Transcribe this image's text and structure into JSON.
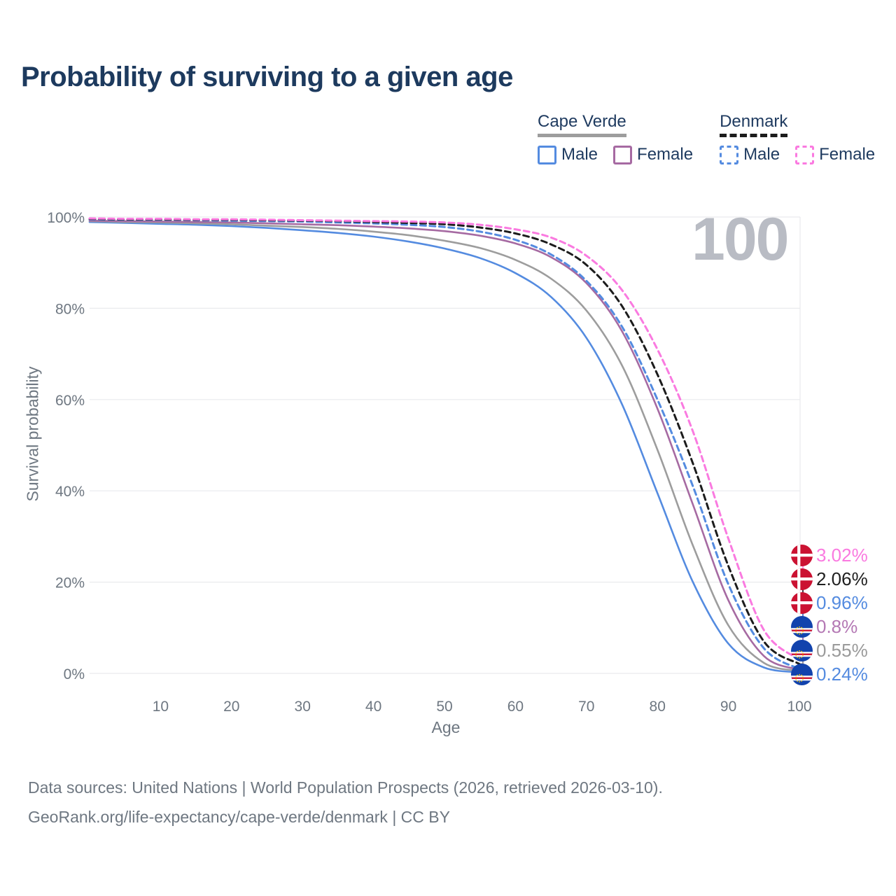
{
  "title": "Probability of surviving to a given age",
  "watermark": "100",
  "legend": {
    "groups": [
      {
        "label": "Cape Verde",
        "line_style": "solid",
        "line_color": "#9d9d9d",
        "items": [
          {
            "label": "Male",
            "color": "#548be0",
            "dashed": false
          },
          {
            "label": "Female",
            "color": "#a66aa2",
            "dashed": false
          }
        ]
      },
      {
        "label": "Denmark",
        "line_style": "dashed",
        "line_color": "#1c1c1c",
        "items": [
          {
            "label": "Male",
            "color": "#548be0",
            "dashed": true
          },
          {
            "label": "Female",
            "color": "#fa7ae0",
            "dashed": true
          }
        ]
      }
    ]
  },
  "chart_data": {
    "type": "line",
    "title": "Probability of surviving to a given age",
    "xlabel": "Age",
    "ylabel": "Survival probability",
    "xlim": [
      0,
      100
    ],
    "ylim": [
      0,
      100
    ],
    "grid": "horizontal",
    "x_ticks": [
      10,
      20,
      30,
      40,
      50,
      60,
      70,
      80,
      90,
      100
    ],
    "y_ticks": [
      0,
      20,
      40,
      60,
      80,
      100
    ],
    "y_tick_format": "percent",
    "x": [
      0,
      5,
      10,
      15,
      20,
      25,
      30,
      35,
      40,
      45,
      50,
      55,
      60,
      65,
      70,
      75,
      80,
      85,
      90,
      95,
      100
    ],
    "series": [
      {
        "id": "cape-verde-male",
        "name": "Cape Verde Male",
        "color": "#548be0",
        "dashed": false,
        "values": [
          98.9,
          98.7,
          98.5,
          98.3,
          98.0,
          97.6,
          97.1,
          96.5,
          95.7,
          94.6,
          93.1,
          91.0,
          87.7,
          82.5,
          73.5,
          59.0,
          39.5,
          20.0,
          6.5,
          1.3,
          0.24
        ]
      },
      {
        "id": "cape-verde",
        "name": "Cape Verde",
        "color": "#9d9d9d",
        "dashed": false,
        "values": [
          99.1,
          98.9,
          98.8,
          98.6,
          98.4,
          98.1,
          97.8,
          97.4,
          96.8,
          96.0,
          94.8,
          93.2,
          90.6,
          86.5,
          79.5,
          67.5,
          49.0,
          28.0,
          10.5,
          2.3,
          0.55
        ]
      },
      {
        "id": "cape-verde-female",
        "name": "Cape Verde Female",
        "color": "#a66aa2",
        "dashed": false,
        "values": [
          99.2,
          99.1,
          99.0,
          98.9,
          98.8,
          98.6,
          98.4,
          98.2,
          97.9,
          97.5,
          96.9,
          95.9,
          94.2,
          91.2,
          85.5,
          75.0,
          58.0,
          37.0,
          16.0,
          3.8,
          0.8
        ]
      },
      {
        "id": "denmark-male",
        "name": "Denmark Male",
        "color": "#548be0",
        "dashed": true,
        "values": [
          99.5,
          99.4,
          99.4,
          99.3,
          99.2,
          99.1,
          99.0,
          98.8,
          98.6,
          98.3,
          97.8,
          96.8,
          95.0,
          91.8,
          86.0,
          76.0,
          60.0,
          41.0,
          19.5,
          5.5,
          0.96
        ]
      },
      {
        "id": "denmark",
        "name": "Denmark",
        "color": "#1c1c1c",
        "dashed": true,
        "values": [
          99.6,
          99.5,
          99.5,
          99.4,
          99.4,
          99.3,
          99.2,
          99.1,
          98.9,
          98.7,
          98.4,
          97.7,
          96.4,
          94.0,
          89.5,
          80.5,
          65.5,
          46.0,
          23.5,
          7.0,
          2.06
        ]
      },
      {
        "id": "denmark-female",
        "name": "Denmark Female",
        "color": "#fa7ae0",
        "dashed": true,
        "values": [
          99.7,
          99.6,
          99.6,
          99.5,
          99.5,
          99.4,
          99.3,
          99.2,
          99.1,
          99.0,
          98.8,
          98.3,
          97.3,
          95.5,
          91.5,
          84.0,
          71.0,
          53.0,
          29.5,
          9.5,
          3.02
        ]
      }
    ]
  },
  "end_labels": [
    {
      "text": "3.02%",
      "value": 3.02,
      "color": "#fa7ae0",
      "flag": "denmark"
    },
    {
      "text": "2.06%",
      "value": 2.06,
      "color": "#1f1f1f",
      "flag": "denmark"
    },
    {
      "text": "0.96%",
      "value": 0.96,
      "color": "#548be0",
      "flag": "denmark"
    },
    {
      "text": "0.8%",
      "value": 0.8,
      "color": "#b478b4",
      "flag": "cape-verde"
    },
    {
      "text": "0.55%",
      "value": 0.55,
      "color": "#9a9a9a",
      "flag": "cape-verde"
    },
    {
      "text": "0.24%",
      "value": 0.24,
      "color": "#548be0",
      "flag": "cape-verde"
    }
  ],
  "footer": {
    "line1": "Data sources: United Nations | World Population Prospects (2026, retrieved 2026-03-10).",
    "line2": "GeoRank.org/life-expectancy/cape-verde/denmark | CC BY"
  }
}
